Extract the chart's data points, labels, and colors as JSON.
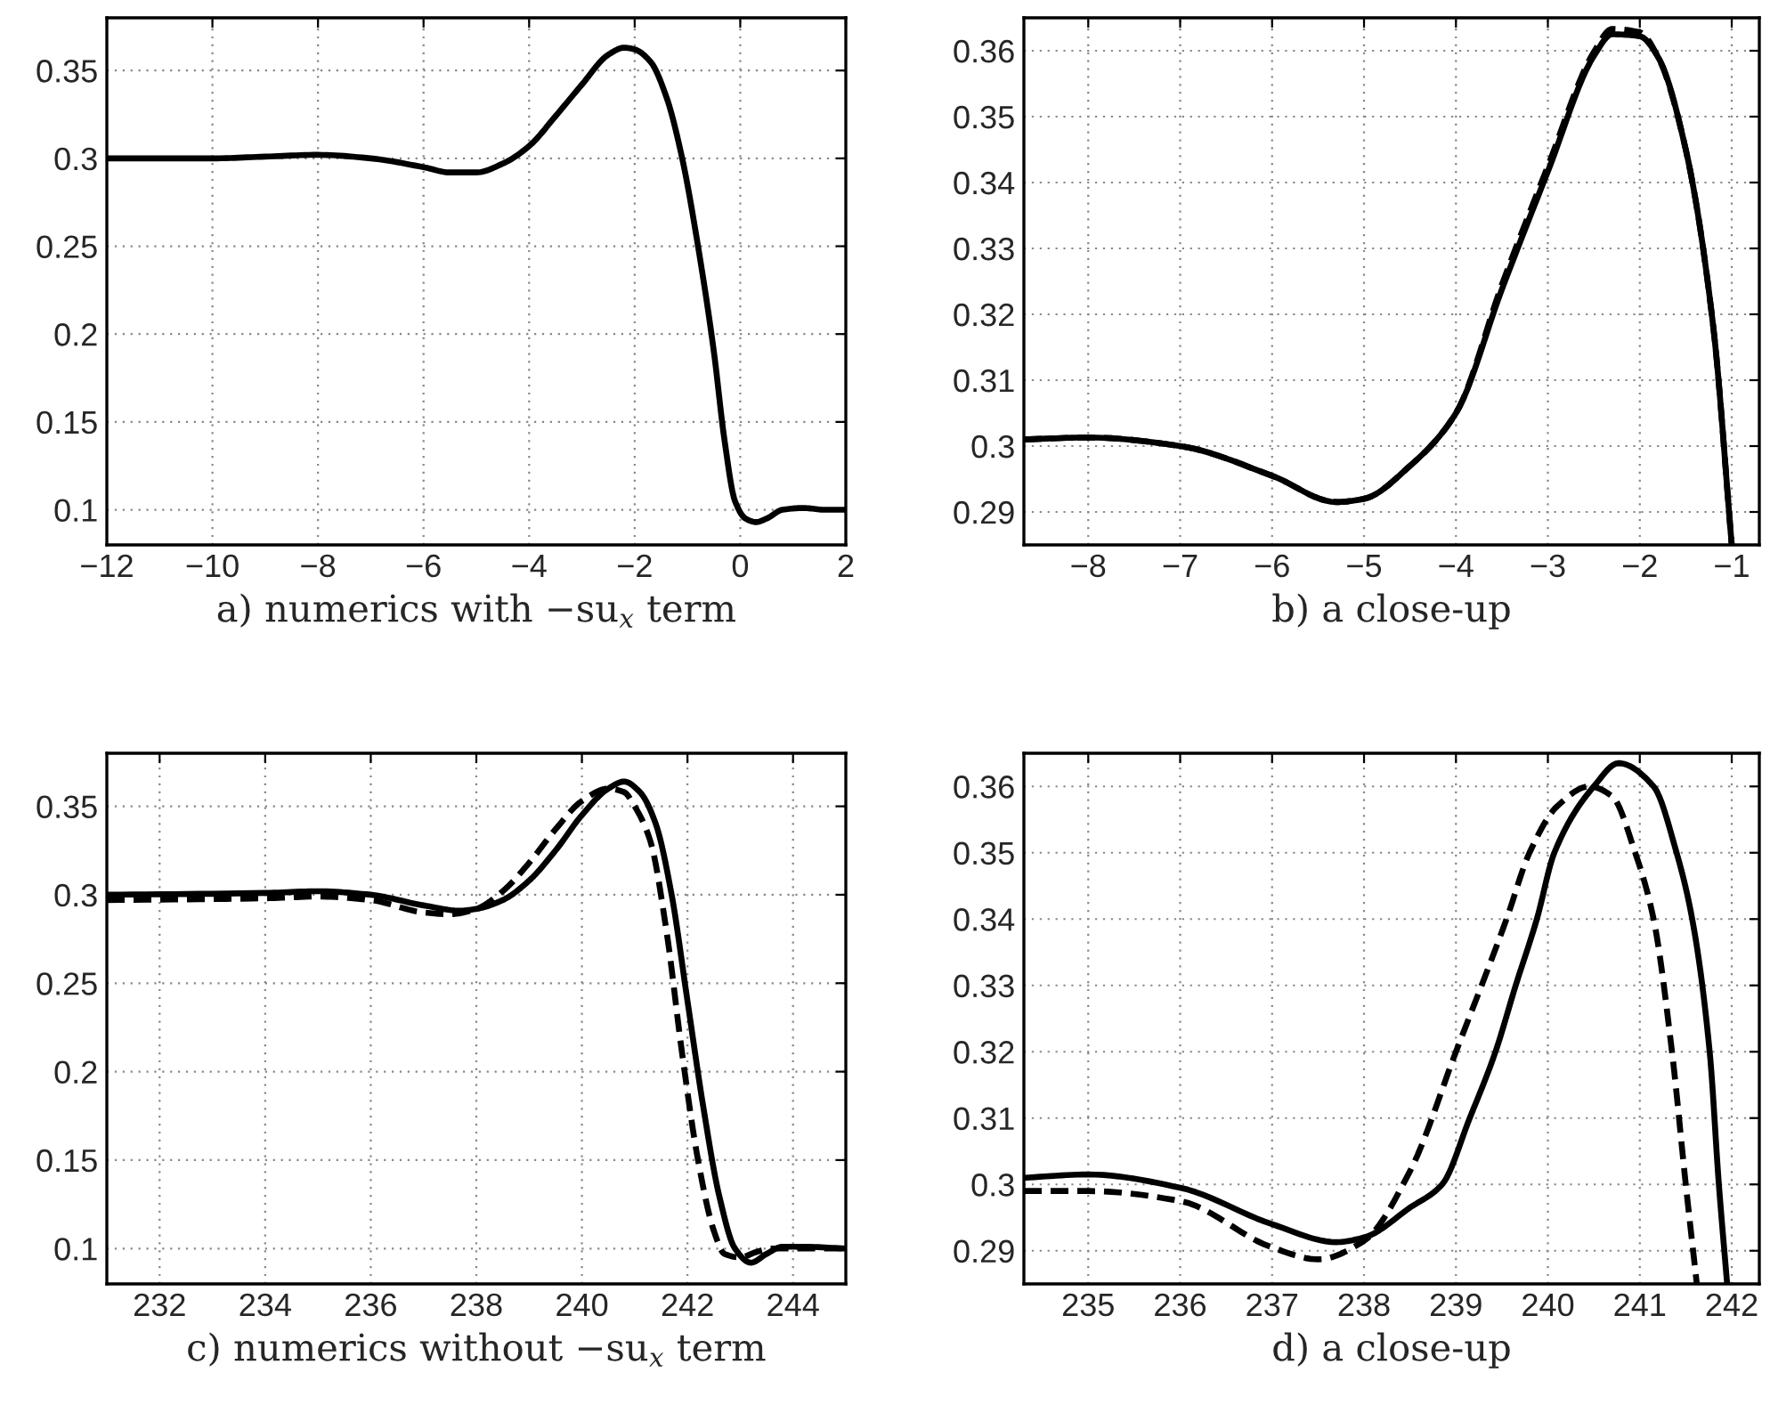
{
  "chart_data": [
    {
      "type": "line",
      "xlabel": "a) numerics with −su$_{x}$ term",
      "xlim": [
        -12,
        2
      ],
      "ylim": [
        0.08,
        0.38
      ],
      "xticks": [
        -12,
        -10,
        -8,
        -6,
        -4,
        -2,
        0,
        2
      ],
      "yticks": [
        0.1,
        0.15,
        0.2,
        0.25,
        0.3,
        0.35
      ],
      "grid": true,
      "series": [
        {
          "color": "#000000",
          "line_style": "solid",
          "x": [
            -12,
            -11,
            -10,
            -9,
            -8,
            -7,
            -6,
            -5.5,
            -5,
            -4.5,
            -4,
            -3.5,
            -3,
            -2.5,
            -2.2,
            -2,
            -1.7,
            -1.4,
            -1.1,
            -0.8,
            -0.5,
            -0.3,
            -0.1,
            0.1,
            0.3,
            0.5,
            0.8,
            1.2,
            1.6,
            2
          ],
          "values": [
            0.3,
            0.3,
            0.3,
            0.301,
            0.302,
            0.3,
            0.295,
            0.292,
            0.292,
            0.297,
            0.307,
            0.324,
            0.342,
            0.359,
            0.363,
            0.362,
            0.355,
            0.335,
            0.3,
            0.25,
            0.19,
            0.14,
            0.105,
            0.095,
            0.093,
            0.095,
            0.1,
            0.101,
            0.1,
            0.1
          ]
        }
      ]
    },
    {
      "type": "line",
      "xlabel": "b) a close-up",
      "xlim": [
        -8.7,
        -0.7
      ],
      "ylim": [
        0.285,
        0.365
      ],
      "xticks": [
        -8,
        -7,
        -6,
        -5,
        -4,
        -3,
        -2,
        -1
      ],
      "yticks": [
        0.29,
        0.3,
        0.31,
        0.32,
        0.33,
        0.34,
        0.35,
        0.36
      ],
      "grid": true,
      "series": [
        {
          "color": "#000000",
          "line_style": "dashed",
          "x": [
            -8.7,
            -8,
            -7,
            -6,
            -5.3,
            -5,
            -4.5,
            -4,
            -3.5,
            -3,
            -2.5,
            -2.3,
            -2,
            -1.8,
            -1.5,
            -1.2,
            -1
          ],
          "values": [
            0.301,
            0.3013,
            0.3,
            0.2955,
            0.2915,
            0.292,
            0.297,
            0.305,
            0.3245,
            0.3425,
            0.3598,
            0.3633,
            0.3628,
            0.359,
            0.345,
            0.318,
            0.285
          ]
        },
        {
          "color": "#000000",
          "line_style": "solid",
          "x": [
            -8.7,
            -8,
            -7,
            -6,
            -5.3,
            -5,
            -4.5,
            -4,
            -3.5,
            -3,
            -2.5,
            -2.3,
            -2,
            -1.8,
            -1.5,
            -1.2,
            -1
          ],
          "values": [
            0.301,
            0.3013,
            0.3,
            0.2955,
            0.2915,
            0.292,
            0.297,
            0.305,
            0.3238,
            0.3417,
            0.3592,
            0.3625,
            0.3622,
            0.359,
            0.345,
            0.318,
            0.285
          ]
        }
      ]
    },
    {
      "type": "line",
      "xlabel": "c) numerics without −su$_{x}$ term",
      "xlim": [
        231,
        245
      ],
      "ylim": [
        0.08,
        0.38
      ],
      "xticks": [
        232,
        234,
        236,
        238,
        240,
        242,
        244
      ],
      "yticks": [
        0.1,
        0.15,
        0.2,
        0.25,
        0.3,
        0.35
      ],
      "grid": true,
      "series": [
        {
          "color": "#000000",
          "line_style": "dashed",
          "x": [
            231,
            234,
            235,
            236,
            237,
            237.5,
            238,
            238.5,
            239,
            239.5,
            240,
            240.5,
            240.8,
            241,
            241.3,
            241.6,
            241.9,
            242.2,
            242.5,
            242.7,
            243,
            243.3,
            243.6,
            244,
            245
          ],
          "values": [
            0.297,
            0.298,
            0.299,
            0.297,
            0.29,
            0.289,
            0.292,
            0.302,
            0.318,
            0.337,
            0.353,
            0.36,
            0.358,
            0.35,
            0.33,
            0.28,
            0.21,
            0.15,
            0.11,
            0.097,
            0.095,
            0.098,
            0.1,
            0.1,
            0.1
          ]
        },
        {
          "color": "#000000",
          "line_style": "solid",
          "x": [
            231,
            234,
            235,
            236,
            237,
            237.7,
            238,
            238.5,
            239,
            239.5,
            240,
            240.5,
            240.8,
            241.1,
            241.4,
            241.7,
            242,
            242.3,
            242.6,
            242.9,
            243.2,
            243.5,
            243.8,
            244.2,
            245
          ],
          "values": [
            0.3,
            0.301,
            0.302,
            0.3,
            0.294,
            0.291,
            0.292,
            0.297,
            0.308,
            0.325,
            0.345,
            0.36,
            0.364,
            0.358,
            0.34,
            0.3,
            0.24,
            0.18,
            0.13,
            0.1,
            0.092,
            0.097,
            0.101,
            0.101,
            0.1
          ]
        }
      ]
    },
    {
      "type": "line",
      "xlabel": "d) a close-up",
      "xlim": [
        234.3,
        242.3
      ],
      "ylim": [
        0.285,
        0.365
      ],
      "xticks": [
        235,
        236,
        237,
        238,
        239,
        240,
        241,
        242
      ],
      "yticks": [
        0.29,
        0.3,
        0.31,
        0.32,
        0.33,
        0.34,
        0.35,
        0.36
      ],
      "grid": true,
      "series": [
        {
          "color": "#000000",
          "line_style": "dashed",
          "x": [
            234.3,
            235,
            236,
            237,
            237.5,
            238,
            238.5,
            239,
            239.55,
            239.8,
            240.1,
            240.45,
            240.7,
            240.95,
            241.15,
            241.35,
            241.5,
            241.62
          ],
          "values": [
            0.299,
            0.299,
            0.2975,
            0.2905,
            0.2887,
            0.2915,
            0.302,
            0.32,
            0.34,
            0.35,
            0.357,
            0.36,
            0.3585,
            0.35,
            0.34,
            0.32,
            0.3,
            0.285
          ]
        },
        {
          "color": "#000000",
          "line_style": "solid",
          "x": [
            234.3,
            235,
            236,
            237,
            237.7,
            238,
            238.5,
            238.85,
            239.15,
            239.43,
            239.65,
            239.88,
            240.07,
            240.5,
            240.77,
            241.15,
            241.4,
            241.57,
            241.76,
            241.86,
            241.95
          ],
          "values": [
            0.301,
            0.3015,
            0.2995,
            0.294,
            0.2913,
            0.292,
            0.2965,
            0.3,
            0.31,
            0.32,
            0.33,
            0.34,
            0.35,
            0.36,
            0.3635,
            0.36,
            0.35,
            0.34,
            0.32,
            0.3,
            0.285
          ]
        }
      ]
    }
  ]
}
